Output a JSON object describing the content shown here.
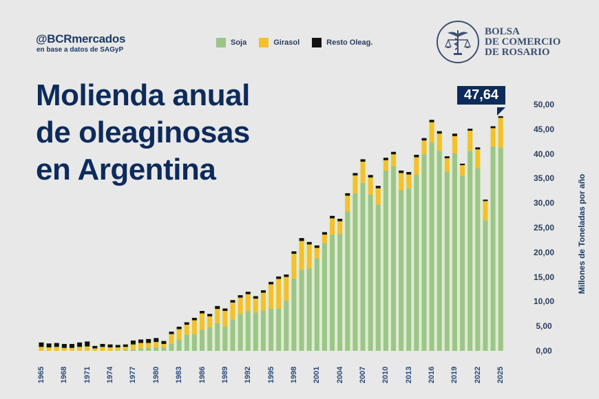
{
  "header": {
    "handle": "@BCRmercados",
    "source": "en base a datos de SAGyP",
    "logo_text": [
      "BOLSA",
      "DE COMERCIO",
      "DE ROSARIO"
    ]
  },
  "legend": [
    {
      "label": "Soja",
      "color": "#9cc58a"
    },
    {
      "label": "Girasol",
      "color": "#f5c02c"
    },
    {
      "label": "Resto Oleag.",
      "color": "#111111"
    }
  ],
  "title_lines": [
    "Molienda anual",
    "de oleaginosas",
    "en Argentina"
  ],
  "callout": {
    "value": "47,64"
  },
  "chart_data": {
    "type": "bar",
    "stacked": true,
    "title": "Molienda anual de oleaginosas en Argentina",
    "xlabel": "",
    "ylabel": "Millones de Toneladas por año",
    "ylim": [
      0,
      50
    ],
    "yticks": [
      "0,00",
      "5,00",
      "10,00",
      "15,00",
      "20,00",
      "25,00",
      "30,00",
      "35,00",
      "40,00",
      "45,00",
      "50,00"
    ],
    "xtick_labels": [
      "1965",
      "1968",
      "1971",
      "1974",
      "1977",
      "1980",
      "1983",
      "1986",
      "1989",
      "1992",
      "1995",
      "1998",
      "2001",
      "2004",
      "2007",
      "2010",
      "2013",
      "2016",
      "2019",
      "2022",
      "2025"
    ],
    "legend_position": "top",
    "grid": false,
    "annotation": {
      "year": "2025",
      "text": "47,64"
    },
    "categories": [
      "1965",
      "1966",
      "1967",
      "1968",
      "1969",
      "1970",
      "1971",
      "1972",
      "1973",
      "1974",
      "1975",
      "1976",
      "1977",
      "1978",
      "1979",
      "1980",
      "1981",
      "1982",
      "1983",
      "1984",
      "1985",
      "1986",
      "1987",
      "1988",
      "1989",
      "1990",
      "1991",
      "1992",
      "1993",
      "1994",
      "1995",
      "1996",
      "1997",
      "1998",
      "1999",
      "2000",
      "2001",
      "2002",
      "2003",
      "2004",
      "2005",
      "2006",
      "2007",
      "2008",
      "2009",
      "2010",
      "2011",
      "2012",
      "2013",
      "2014",
      "2015",
      "2016",
      "2017",
      "2018",
      "2019",
      "2020",
      "2021",
      "2022",
      "2023",
      "2024",
      "2025"
    ],
    "series": [
      {
        "name": "Soja",
        "color": "#9cc58a",
        "values": [
          0.0,
          0.0,
          0.0,
          0.0,
          0.0,
          0.0,
          0.0,
          0.0,
          0.0,
          0.0,
          0.1,
          0.2,
          0.3,
          0.5,
          0.6,
          0.7,
          0.7,
          1.5,
          2.3,
          3.3,
          3.4,
          4.3,
          4.8,
          5.6,
          5.0,
          6.4,
          7.5,
          8.1,
          7.8,
          8.2,
          8.6,
          8.6,
          10.2,
          14.7,
          16.5,
          16.8,
          18.8,
          21.9,
          23.6,
          23.8,
          28.3,
          32.0,
          34.1,
          31.7,
          29.7,
          36.6,
          37.5,
          32.6,
          33.0,
          35.8,
          39.9,
          42.3,
          40.6,
          36.4,
          40.1,
          35.6,
          40.6,
          37.1,
          26.5,
          41.5,
          41.3
        ]
      },
      {
        "name": "Girasol",
        "color": "#f5c02c",
        "values": [
          0.8,
          0.7,
          0.8,
          0.6,
          0.6,
          0.8,
          0.9,
          0.5,
          0.8,
          0.7,
          0.6,
          0.6,
          1.0,
          1.1,
          1.0,
          1.1,
          0.7,
          1.9,
          2.1,
          2.0,
          2.8,
          3.3,
          2.2,
          2.9,
          3.1,
          3.4,
          3.3,
          3.4,
          2.8,
          3.6,
          4.9,
          6.0,
          4.8,
          5.0,
          5.8,
          4.8,
          2.1,
          1.7,
          3.3,
          2.5,
          3.2,
          3.6,
          4.3,
          3.5,
          3.3,
          2.1,
          2.4,
          3.5,
          2.8,
          3.5,
          2.8,
          4.1,
          3.5,
          2.7,
          3.5,
          2.1,
          4.1,
          3.8,
          3.9,
          3.7,
          6.0
        ]
      },
      {
        "name": "Resto Oleag.",
        "color": "#111111",
        "values": [
          0.9,
          0.8,
          0.8,
          0.8,
          0.8,
          0.9,
          1.0,
          0.5,
          0.6,
          0.6,
          0.5,
          0.5,
          0.8,
          0.7,
          0.8,
          0.8,
          0.6,
          0.5,
          0.5,
          0.5,
          0.5,
          0.5,
          0.5,
          0.6,
          0.5,
          0.5,
          0.5,
          0.5,
          0.5,
          0.5,
          0.5,
          0.5,
          0.5,
          0.5,
          0.6,
          0.5,
          0.5,
          0.5,
          0.5,
          0.5,
          0.5,
          0.5,
          0.5,
          0.5,
          0.5,
          0.5,
          0.5,
          0.5,
          0.5,
          0.5,
          0.5,
          0.5,
          0.5,
          0.4,
          0.5,
          0.3,
          0.4,
          0.4,
          0.3,
          0.4,
          0.34
        ]
      }
    ],
    "totals": [
      1.7,
      1.5,
      1.6,
      1.4,
      1.4,
      1.7,
      1.9,
      1.0,
      1.4,
      1.3,
      1.2,
      1.3,
      2.1,
      2.3,
      2.4,
      2.6,
      2.0,
      3.9,
      4.9,
      5.8,
      6.7,
      8.1,
      7.5,
      9.1,
      8.6,
      10.3,
      11.3,
      12.0,
      11.1,
      12.3,
      14.0,
      15.1,
      15.5,
      20.2,
      22.9,
      22.1,
      21.4,
      24.1,
      27.4,
      26.8,
      32.0,
      36.1,
      38.9,
      35.7,
      33.5,
      39.2,
      40.4,
      36.6,
      36.3,
      39.8,
      43.2,
      46.9,
      44.6,
      39.5,
      44.1,
      38.0,
      45.1,
      41.3,
      30.7,
      45.6,
      47.64
    ]
  }
}
